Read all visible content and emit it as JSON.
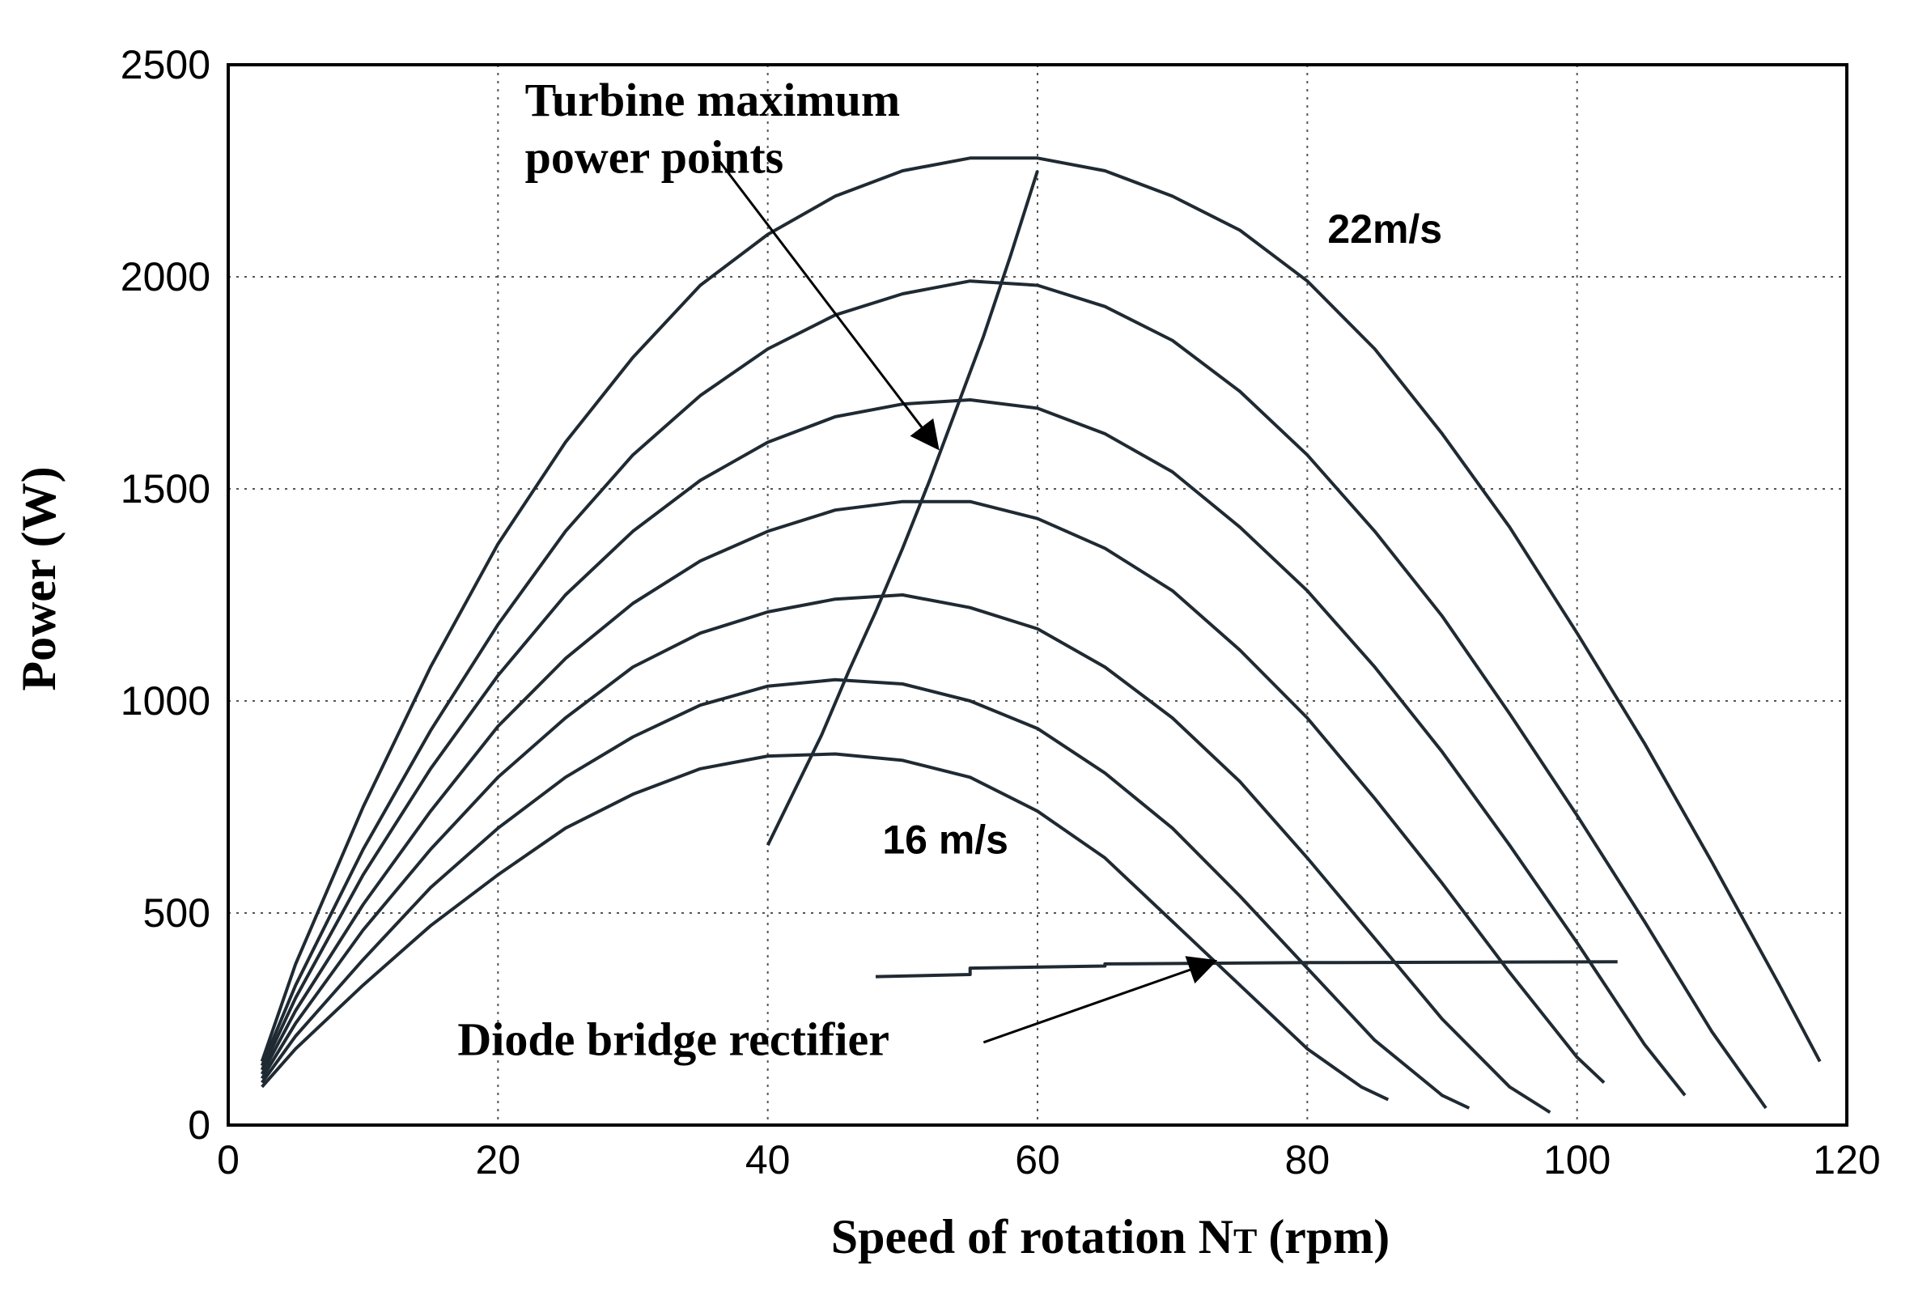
{
  "chart_data": {
    "type": "line",
    "title": "",
    "xlabel": "Speed of rotation N",
    "xlabel_sub": "T",
    "xlabel_unit": "(rpm)",
    "ylabel": "Power (W)",
    "xlim": [
      0,
      120
    ],
    "ylim": [
      0,
      2500
    ],
    "xticks": [
      "0",
      "20",
      "40",
      "60",
      "80",
      "100",
      "120"
    ],
    "yticks": [
      "0",
      "500",
      "1000",
      "1500",
      "2000",
      "2500"
    ],
    "grid": true,
    "colors": {
      "curve": "#1f2a33",
      "mpp": "#22b4cc",
      "diode": "#1a1ad6",
      "arrow": "#000000"
    },
    "series": [
      {
        "name": "16 m/s",
        "x": [
          2.5,
          5,
          10,
          15,
          20,
          25,
          30,
          35,
          40,
          45,
          50,
          55,
          60,
          65,
          70,
          75,
          80,
          84,
          86
        ],
        "y": [
          90,
          180,
          330,
          470,
          590,
          700,
          780,
          840,
          870,
          875,
          860,
          820,
          740,
          630,
          480,
          330,
          180,
          90,
          60
        ]
      },
      {
        "name": "",
        "x": [
          2.5,
          5,
          10,
          15,
          20,
          25,
          30,
          35,
          40,
          45,
          50,
          55,
          60,
          65,
          70,
          75,
          80,
          85,
          90,
          92
        ],
        "y": [
          100,
          210,
          390,
          560,
          700,
          820,
          915,
          990,
          1035,
          1050,
          1040,
          1000,
          935,
          830,
          700,
          540,
          370,
          200,
          70,
          40
        ]
      },
      {
        "name": "",
        "x": [
          2.5,
          5,
          10,
          15,
          20,
          25,
          30,
          35,
          40,
          45,
          50,
          55,
          60,
          65,
          70,
          75,
          80,
          85,
          90,
          95,
          98
        ],
        "y": [
          110,
          240,
          460,
          650,
          820,
          960,
          1080,
          1160,
          1210,
          1240,
          1250,
          1220,
          1170,
          1080,
          960,
          810,
          630,
          440,
          250,
          90,
          30
        ]
      },
      {
        "name": "",
        "x": [
          2.5,
          5,
          10,
          15,
          20,
          25,
          30,
          35,
          40,
          45,
          50,
          55,
          60,
          65,
          70,
          75,
          80,
          85,
          90,
          95,
          100,
          102
        ],
        "y": [
          120,
          270,
          520,
          740,
          940,
          1100,
          1230,
          1330,
          1400,
          1450,
          1470,
          1470,
          1430,
          1360,
          1260,
          1120,
          960,
          770,
          570,
          360,
          160,
          100
        ]
      },
      {
        "name": "",
        "x": [
          2.5,
          5,
          10,
          15,
          20,
          25,
          30,
          35,
          40,
          45,
          50,
          55,
          60,
          65,
          70,
          75,
          80,
          85,
          90,
          95,
          100,
          105,
          108
        ],
        "y": [
          130,
          300,
          590,
          840,
          1060,
          1250,
          1400,
          1520,
          1610,
          1670,
          1700,
          1710,
          1690,
          1630,
          1540,
          1410,
          1260,
          1080,
          880,
          660,
          430,
          190,
          70
        ]
      },
      {
        "name": "",
        "x": [
          2.5,
          5,
          10,
          15,
          20,
          25,
          30,
          35,
          40,
          45,
          50,
          55,
          60,
          65,
          70,
          75,
          80,
          85,
          90,
          95,
          100,
          105,
          110,
          114
        ],
        "y": [
          140,
          330,
          650,
          930,
          1180,
          1400,
          1580,
          1720,
          1830,
          1910,
          1960,
          1990,
          1980,
          1930,
          1850,
          1730,
          1580,
          1400,
          1200,
          970,
          730,
          480,
          220,
          40
        ]
      },
      {
        "name": "22m/s",
        "x": [
          2.5,
          5,
          10,
          15,
          20,
          25,
          30,
          35,
          40,
          45,
          50,
          55,
          60,
          65,
          70,
          75,
          80,
          85,
          90,
          95,
          100,
          105,
          110,
          115,
          118
        ],
        "y": [
          150,
          380,
          750,
          1080,
          1370,
          1610,
          1810,
          1980,
          2100,
          2190,
          2250,
          2280,
          2280,
          2250,
          2190,
          2110,
          1990,
          1830,
          1630,
          1410,
          1160,
          900,
          620,
          330,
          150
        ]
      },
      {
        "name": "Turbine maximum power points",
        "x": [
          40,
          42,
          44,
          46,
          48,
          50,
          52,
          54,
          56,
          58,
          60
        ],
        "y": [
          660,
          790,
          920,
          1070,
          1210,
          1360,
          1520,
          1690,
          1860,
          2050,
          2250
        ]
      },
      {
        "name": "Diode bridge rectifier",
        "x": [
          48,
          55,
          55,
          65,
          65,
          80,
          103
        ],
        "y": [
          350,
          355,
          370,
          375,
          380,
          383,
          385
        ]
      }
    ],
    "annotations": [
      {
        "text": "Turbine maximum",
        "x": 22,
        "y": 2380
      },
      {
        "text": "power points",
        "x": 22,
        "y": 2245
      },
      {
        "text": "22m/s",
        "x": 81.5,
        "y": 2080
      },
      {
        "text": "16 m/s",
        "x": 48.5,
        "y": 640
      },
      {
        "text": "Diode bridge rectifier",
        "x": 17,
        "y": 165
      }
    ],
    "arrows": [
      {
        "from_x": 36,
        "from_y": 2290,
        "to_x": 52.5,
        "to_y": 1600
      },
      {
        "from_x": 56,
        "from_y": 195,
        "to_x": 73,
        "to_y": 385
      }
    ]
  }
}
